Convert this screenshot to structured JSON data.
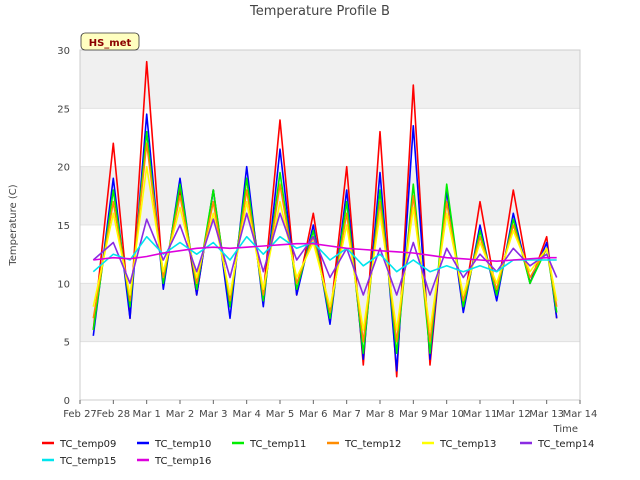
{
  "chart_data": {
    "type": "line",
    "title": "Temperature Profile B",
    "xlabel": "Time",
    "ylabel": "Temperature (C)",
    "badge": "HS_met",
    "x_ticks": [
      "Feb 27",
      "Feb 28",
      "Mar 1",
      "Mar 2",
      "Mar 3",
      "Mar 4",
      "Mar 5",
      "Mar 6",
      "Mar 7",
      "Mar 8",
      "Mar 9",
      "Mar 10",
      "Mar 11",
      "Mar 12",
      "Mar 13",
      "Mar 14"
    ],
    "y_ticks": [
      0,
      5,
      10,
      15,
      20,
      25,
      30
    ],
    "ylim": [
      0,
      30
    ],
    "xlim_days": [
      0,
      15
    ],
    "grid": "horizontal bands",
    "legend_position": "bottom",
    "x": [
      0.4,
      1.0,
      1.5,
      2.0,
      2.5,
      3.0,
      3.5,
      4.0,
      4.5,
      5.0,
      5.5,
      6.0,
      6.5,
      7.0,
      7.5,
      8.0,
      8.5,
      9.0,
      9.5,
      10.0,
      10.5,
      11.0,
      11.5,
      12.0,
      12.5,
      13.0,
      13.5,
      14.0,
      14.3
    ],
    "series": [
      {
        "name": "TC_temp09",
        "color": "#ff0000",
        "values": [
          6,
          22,
          7,
          29,
          10,
          18,
          9,
          18,
          8,
          19,
          9,
          24,
          9,
          16,
          7,
          20,
          3,
          23,
          2,
          27,
          3,
          18,
          8,
          17,
          9,
          18,
          10,
          14,
          7
        ]
      },
      {
        "name": "TC_temp10",
        "color": "#0000ff",
        "values": [
          5.5,
          19,
          7,
          24.5,
          9.5,
          19,
          9,
          18,
          7,
          20,
          8,
          21.5,
          9,
          15,
          6.5,
          18,
          3.5,
          19.5,
          2.5,
          23.5,
          3.5,
          18,
          7.5,
          15,
          8.5,
          16,
          10,
          13.5,
          7
        ]
      },
      {
        "name": "TC_temp11",
        "color": "#00ee00",
        "values": [
          6,
          18,
          8,
          23,
          10,
          18.5,
          9.5,
          18,
          8,
          19,
          8.5,
          19.5,
          9.5,
          14.5,
          7,
          17,
          4,
          18,
          4,
          18.5,
          4,
          18.5,
          8,
          14.5,
          9,
          15.5,
          10,
          13,
          7.5
        ]
      },
      {
        "name": "TC_temp12",
        "color": "#ff8c00",
        "values": [
          7,
          17,
          8.5,
          22,
          10.5,
          17.5,
          10,
          17,
          8.5,
          18,
          9,
          18.5,
          10,
          14,
          7.5,
          16,
          5,
          17,
          5,
          17.5,
          5,
          17,
          8.5,
          14,
          9.5,
          15,
          10.5,
          13,
          8
        ]
      },
      {
        "name": "TC_temp13",
        "color": "#ffff00",
        "values": [
          8,
          16,
          9,
          20,
          11,
          16.5,
          10.5,
          16,
          9,
          17,
          9.5,
          17,
          10.5,
          13.5,
          8,
          15,
          6,
          16,
          6,
          16.5,
          6,
          16,
          9,
          13.5,
          10,
          14.5,
          11,
          13,
          8.5
        ]
      },
      {
        "name": "TC_temp14",
        "color": "#8a2be2",
        "values": [
          12,
          13.5,
          10,
          15.5,
          12,
          15,
          11,
          15.5,
          10.5,
          16,
          11,
          16,
          12,
          14,
          10.5,
          13,
          9,
          13,
          9,
          13.5,
          9,
          13,
          10.5,
          12.5,
          11,
          13,
          11.5,
          12.5,
          10.5
        ]
      },
      {
        "name": "TC_temp15",
        "color": "#00e5ee",
        "values": [
          11,
          12.5,
          12,
          14,
          12.5,
          13.5,
          12.5,
          13.5,
          12,
          14,
          12.5,
          14,
          13,
          13.5,
          12,
          13,
          11.5,
          12.5,
          11,
          12,
          11,
          11.5,
          11,
          11.5,
          11,
          12,
          12,
          12,
          12
        ]
      },
      {
        "name": "TC_temp16",
        "color": "#dd00dd",
        "values": [
          12,
          12.2,
          12.1,
          12.3,
          12.6,
          12.8,
          13.0,
          13.1,
          13.0,
          13.1,
          13.2,
          13.3,
          13.4,
          13.4,
          13.2,
          13.0,
          12.9,
          12.8,
          12.7,
          12.6,
          12.4,
          12.2,
          12.1,
          12.0,
          11.9,
          12.0,
          12.1,
          12.2,
          12.2
        ]
      }
    ]
  }
}
